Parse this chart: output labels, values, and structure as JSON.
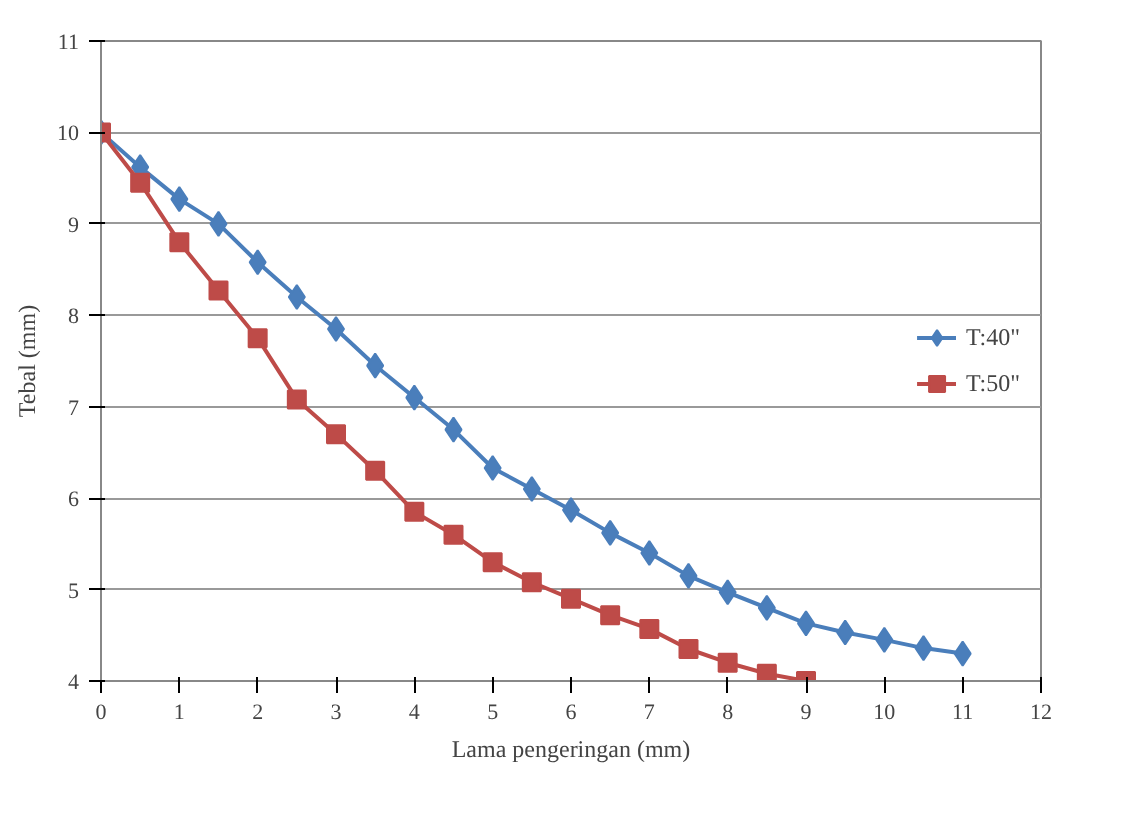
{
  "chart_data": {
    "type": "line",
    "xlabel": "Lama pengeringan (mm)",
    "ylabel": "Tebal (mm)",
    "xlim": [
      0,
      12
    ],
    "xticks": [
      0,
      1,
      2,
      3,
      4,
      5,
      6,
      7,
      8,
      9,
      10,
      11,
      12
    ],
    "ylim": [
      4,
      11
    ],
    "yticks": [
      4,
      5,
      6,
      7,
      8,
      9,
      10,
      11
    ],
    "grid": "y",
    "legend": "right",
    "series": [
      {
        "name": "T:40\"",
        "color": "#4a7ebb",
        "marker": "diamond",
        "x": [
          0,
          0.5,
          1,
          1.5,
          2,
          2.5,
          3,
          3.5,
          4,
          4.5,
          5,
          5.5,
          6,
          6.5,
          7,
          7.5,
          8,
          8.5,
          9,
          9.5,
          10,
          10.5,
          11
        ],
        "values": [
          10,
          9.62,
          9.27,
          9.0,
          8.58,
          8.2,
          7.85,
          7.45,
          7.1,
          6.75,
          6.33,
          6.1,
          5.87,
          5.62,
          5.4,
          5.15,
          4.97,
          4.8,
          4.63,
          4.53,
          4.45,
          4.36,
          4.3
        ]
      },
      {
        "name": "T:50\"",
        "color": "#be4b48",
        "marker": "square",
        "x": [
          0,
          0.5,
          1,
          1.5,
          2,
          2.5,
          3,
          3.5,
          4,
          4.5,
          5,
          5.5,
          6,
          6.5,
          7,
          7.5,
          8,
          8.5,
          9
        ],
        "values": [
          10,
          9.45,
          8.8,
          8.27,
          7.75,
          7.08,
          6.7,
          6.3,
          5.85,
          5.6,
          5.3,
          5.08,
          4.9,
          4.72,
          4.57,
          4.35,
          4.2,
          4.08,
          4.0
        ]
      }
    ]
  }
}
